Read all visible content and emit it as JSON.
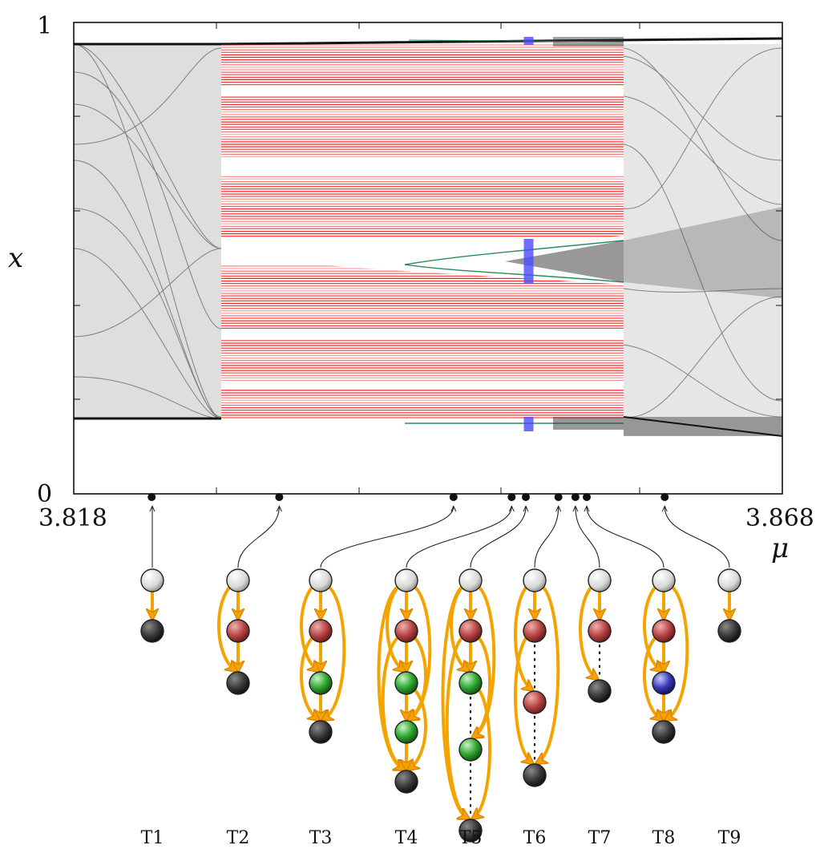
{
  "axes": {
    "y_label": "x",
    "x_label": "μ",
    "y_top_tick": "1",
    "y_bottom_tick": "0",
    "x_left_tick": "3.818",
    "x_right_tick": "3.868",
    "x_range": [
      3.818,
      3.868
    ],
    "y_range": [
      0,
      1
    ]
  },
  "colors": {
    "chaotic_band": "#2a2a2a",
    "crisis_region": "#ff2020",
    "arrow": "#f4a400",
    "arrow_outline": "#e08000",
    "node_start": "#e6e6e6",
    "node_end": "#333333",
    "node_red": "#b84444",
    "node_green": "#2fa62f",
    "node_blue": "#3a3ab8",
    "green_orbit": "#2e8b57",
    "blue_orbit": "#4a4aff"
  },
  "marker_mu": [
    3.8235,
    3.8325,
    3.8448,
    3.8489,
    3.8499,
    3.8522,
    3.8534,
    3.8542,
    3.8597
  ],
  "transitions": [
    {
      "label": "T1",
      "nodes": [
        "start",
        "end"
      ]
    },
    {
      "label": "T2",
      "nodes": [
        "start",
        "red",
        "end"
      ]
    },
    {
      "label": "T3",
      "nodes": [
        "start",
        "red",
        "green",
        "end"
      ]
    },
    {
      "label": "T4",
      "nodes": [
        "start",
        "red",
        "green",
        "green",
        "end"
      ]
    },
    {
      "label": "T5",
      "nodes": [
        "start",
        "red",
        "green",
        "green",
        "end"
      ]
    },
    {
      "label": "T6",
      "nodes": [
        "start",
        "red",
        "red",
        "end"
      ]
    },
    {
      "label": "T7",
      "nodes": [
        "start",
        "red",
        "end"
      ]
    },
    {
      "label": "T8",
      "nodes": [
        "start",
        "red",
        "blue",
        "end"
      ]
    },
    {
      "label": "T9",
      "nodes": [
        "start",
        "end"
      ]
    }
  ]
}
